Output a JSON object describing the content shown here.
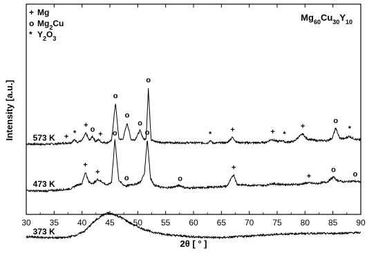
{
  "chart_data": {
    "type": "line",
    "title_parts": [
      {
        "text": "Mg",
        "sub": false
      },
      {
        "text": "60",
        "sub": true
      },
      {
        "text": "Cu",
        "sub": false
      },
      {
        "text": "30",
        "sub": true
      },
      {
        "text": "Y",
        "sub": false
      },
      {
        "text": "10",
        "sub": true
      }
    ],
    "xlabel": "2θ [ ° ]",
    "ylabel": "Intensity [a.u.]",
    "xlim": [
      30,
      90
    ],
    "xticks": [
      "30",
      "35",
      "40",
      "45",
      "50",
      "55",
      "60",
      "65",
      "70",
      "75",
      "80",
      "85",
      "90"
    ],
    "y_ticks_shown": false,
    "legend": {
      "placement": "top-left",
      "entries": [
        {
          "symbol": "+",
          "parts": [
            {
              "text": "Mg",
              "sub": false
            }
          ]
        },
        {
          "symbol": "o",
          "parts": [
            {
              "text": "Mg",
              "sub": false
            },
            {
              "text": "2",
              "sub": true
            },
            {
              "text": "Cu",
              "sub": false
            }
          ]
        },
        {
          "symbol": "*",
          "parts": [
            {
              "text": "Y",
              "sub": false
            },
            {
              "text": "2",
              "sub": true
            },
            {
              "text": "O",
              "sub": false
            },
            {
              "text": "3",
              "sub": true
            }
          ]
        }
      ]
    },
    "series": [
      {
        "name": "573 K",
        "baseline": 0.5,
        "points": [
          [
            30,
            0.5
          ],
          [
            33,
            0.3
          ],
          [
            35,
            0.5
          ],
          [
            37,
            1.0
          ],
          [
            38,
            1.2
          ],
          [
            38.7,
            3
          ],
          [
            39.2,
            1.5
          ],
          [
            40,
            2.5
          ],
          [
            40.7,
            7
          ],
          [
            41.3,
            2.5
          ],
          [
            41.9,
            5
          ],
          [
            42.4,
            2
          ],
          [
            43,
            3
          ],
          [
            43.5,
            1.5
          ],
          [
            44.5,
            1.2
          ],
          [
            45.3,
            2.5
          ],
          [
            46,
            25
          ],
          [
            46.6,
            3.5
          ],
          [
            47.3,
            3
          ],
          [
            48.1,
            13
          ],
          [
            48.8,
            3
          ],
          [
            49.5,
            3
          ],
          [
            50.4,
            8.5
          ],
          [
            51.1,
            3
          ],
          [
            51.5,
            4
          ],
          [
            51.9,
            33
          ],
          [
            52.4,
            3
          ],
          [
            53,
            2
          ],
          [
            54,
            1.5
          ],
          [
            55,
            1.2
          ],
          [
            57,
            1.2
          ],
          [
            59,
            1.2
          ],
          [
            61,
            1.2
          ],
          [
            62.5,
            1.0
          ],
          [
            63,
            2.5
          ],
          [
            63.5,
            1.0
          ],
          [
            65,
            1.2
          ],
          [
            66,
            1.2
          ],
          [
            67,
            4.5
          ],
          [
            67.7,
            1.5
          ],
          [
            69,
            1.2
          ],
          [
            71,
            1.2
          ],
          [
            72,
            1.2
          ],
          [
            73,
            1.5
          ],
          [
            74,
            3.2
          ],
          [
            75,
            2.0
          ],
          [
            76,
            2.5
          ],
          [
            76.5,
            1.5
          ],
          [
            78,
            2.0
          ],
          [
            79,
            5.0
          ],
          [
            79.6,
            6.5
          ],
          [
            80.3,
            3.5
          ],
          [
            82,
            2.5
          ],
          [
            83,
            2.5
          ],
          [
            84,
            2.5
          ],
          [
            84.9,
            4
          ],
          [
            85.5,
            10
          ],
          [
            86.2,
            4
          ],
          [
            87,
            3.5
          ],
          [
            87.9,
            5
          ],
          [
            88.5,
            4
          ],
          [
            89.3,
            3
          ],
          [
            90,
            3
          ]
        ],
        "peak_labels": [
          {
            "x": 37.2,
            "y": 3.5,
            "symbol": "+"
          },
          {
            "x": 38.7,
            "y": 5.5,
            "symbol": "*"
          },
          {
            "x": 40.7,
            "y": 10.3,
            "symbol": "+"
          },
          {
            "x": 41.9,
            "y": 7.7,
            "symbol": "o"
          },
          {
            "x": 43.3,
            "y": 5.0,
            "symbol": "+"
          },
          {
            "x": 46.0,
            "y": 27.5,
            "symbol": "o"
          },
          {
            "x": 48.1,
            "y": 16.2,
            "symbol": "o"
          },
          {
            "x": 50.4,
            "y": 11.5,
            "symbol": "o"
          },
          {
            "x": 51.9,
            "y": 37.0,
            "symbol": "o"
          },
          {
            "x": 63.0,
            "y": 5.0,
            "symbol": "*"
          },
          {
            "x": 67.0,
            "y": 7.5,
            "symbol": "+"
          },
          {
            "x": 74.2,
            "y": 6.3,
            "symbol": "+"
          },
          {
            "x": 76.3,
            "y": 4.8,
            "symbol": "*"
          },
          {
            "x": 79.6,
            "y": 9.5,
            "symbol": "+"
          },
          {
            "x": 85.5,
            "y": 12.8,
            "symbol": "o"
          },
          {
            "x": 88.0,
            "y": 8.2,
            "symbol": "*"
          }
        ]
      },
      {
        "name": "473 K",
        "baseline": -27,
        "points": [
          [
            30,
            -27
          ],
          [
            33,
            -27.5
          ],
          [
            35,
            -27
          ],
          [
            37,
            -26.5
          ],
          [
            38,
            -26
          ],
          [
            39,
            -24
          ],
          [
            40,
            -23
          ],
          [
            40.6,
            -16
          ],
          [
            41.2,
            -22
          ],
          [
            42,
            -23
          ],
          [
            42.8,
            -20.5
          ],
          [
            43.6,
            -22
          ],
          [
            44.5,
            -24
          ],
          [
            45.3,
            -22
          ],
          [
            45.9,
            3
          ],
          [
            46.6,
            -21
          ],
          [
            47.3,
            -23.5
          ],
          [
            48,
            -24.5
          ],
          [
            48.8,
            -23.5
          ],
          [
            49.5,
            -23.5
          ],
          [
            50.5,
            -22
          ],
          [
            51.2,
            -17
          ],
          [
            51.7,
            3.5
          ],
          [
            52.3,
            -20
          ],
          [
            53,
            -24
          ],
          [
            54,
            -25
          ],
          [
            55,
            -25.5
          ],
          [
            56.5,
            -25
          ],
          [
            57.5,
            -24
          ],
          [
            58.5,
            -25.5
          ],
          [
            61,
            -25.5
          ],
          [
            64,
            -25
          ],
          [
            66,
            -24.5
          ],
          [
            67.2,
            -17.5
          ],
          [
            67.8,
            -23.5
          ],
          [
            70,
            -24
          ],
          [
            73,
            -24
          ],
          [
            74,
            -23
          ],
          [
            76,
            -23.5
          ],
          [
            79,
            -23.5
          ],
          [
            80.5,
            -22.5
          ],
          [
            82,
            -23
          ],
          [
            84,
            -22
          ],
          [
            85.1,
            -19
          ],
          [
            85.7,
            -21
          ],
          [
            87,
            -22
          ],
          [
            88.5,
            -21.5
          ],
          [
            90,
            -22
          ]
        ],
        "peak_labels": [
          {
            "x": 40.6,
            "y": -13.2,
            "symbol": "+"
          },
          {
            "x": 42.8,
            "y": -17.5,
            "symbol": "+"
          },
          {
            "x": 45.9,
            "y": 5.5,
            "symbol": "o"
          },
          {
            "x": 48.0,
            "y": -21.0,
            "symbol": "o"
          },
          {
            "x": 51.7,
            "y": 6.0,
            "symbol": "o"
          },
          {
            "x": 57.6,
            "y": -21.5,
            "symbol": "o"
          },
          {
            "x": 67.2,
            "y": -14.8,
            "symbol": "+"
          },
          {
            "x": 80.7,
            "y": -20.0,
            "symbol": "+"
          },
          {
            "x": 85.1,
            "y": -16.2,
            "symbol": "o"
          },
          {
            "x": 89.0,
            "y": -18.8,
            "symbol": "o"
          }
        ]
      },
      {
        "name": "373 K",
        "baseline": -55,
        "points": [
          [
            30,
            -54.5
          ],
          [
            34,
            -55
          ],
          [
            37,
            -55
          ],
          [
            39,
            -53.5
          ],
          [
            40.5,
            -51
          ],
          [
            42,
            -46
          ],
          [
            43.5,
            -42
          ],
          [
            44.5,
            -40.5
          ],
          [
            45.5,
            -41
          ],
          [
            47,
            -43
          ],
          [
            49,
            -47
          ],
          [
            51,
            -50
          ],
          [
            53,
            -52
          ],
          [
            56,
            -53.5
          ],
          [
            60,
            -54.5
          ],
          [
            65,
            -55
          ],
          [
            70,
            -54
          ],
          [
            75,
            -53
          ],
          [
            80,
            -52.5
          ],
          [
            85,
            -52.5
          ],
          [
            90,
            -52
          ]
        ],
        "peak_labels": []
      }
    ]
  }
}
